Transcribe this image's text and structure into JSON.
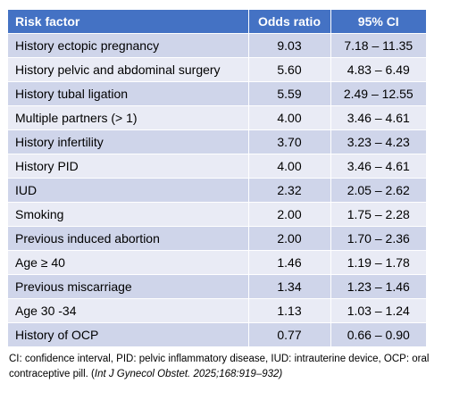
{
  "table": {
    "headers": [
      "Risk factor",
      "Odds ratio",
      "95% CI"
    ],
    "rows": [
      [
        "History ectopic pregnancy",
        "9.03",
        "7.18 – 11.35"
      ],
      [
        "History pelvic and abdominal surgery",
        "5.60",
        "4.83 – 6.49"
      ],
      [
        "History tubal ligation",
        "5.59",
        "2.49 – 12.55"
      ],
      [
        "Multiple partners (> 1)",
        "4.00",
        "3.46 – 4.61"
      ],
      [
        "History infertility",
        "3.70",
        "3.23 – 4.23"
      ],
      [
        "History PID",
        "4.00",
        "3.46 – 4.61"
      ],
      [
        "IUD",
        "2.32",
        "2.05 – 2.62"
      ],
      [
        "Smoking",
        "2.00",
        "1.75 – 2.28"
      ],
      [
        "Previous induced abortion",
        "2.00",
        "1.70 – 2.36"
      ],
      [
        "Age ≥ 40",
        "1.46",
        "1.19 – 1.78"
      ],
      [
        "Previous miscarriage",
        "1.34",
        "1.23 – 1.46"
      ],
      [
        "Age 30 -34",
        "1.13",
        "1.03 – 1.24"
      ],
      [
        "History of OCP",
        "0.77",
        "0.66 – 0.90"
      ]
    ]
  },
  "footnote": {
    "text": "CI: confidence interval, PID: pelvic inflammatory disease, IUD: intrauterine device, OCP: oral contraceptive pill. (",
    "citation": "Int J Gynecol Obstet. 2025;168:919–932)"
  },
  "colors": {
    "header": "#4472c4",
    "row_odd": "#cfd5ea",
    "row_even": "#e9ebf5"
  }
}
